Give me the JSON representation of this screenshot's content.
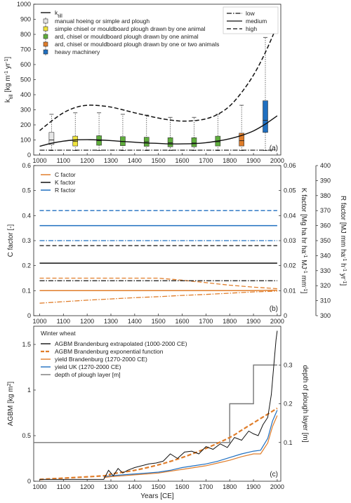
{
  "chart_data": [
    {
      "type": "line",
      "panel_label": "(a)",
      "ylabel": "k",
      "ylabel_sub": "till",
      "ylabel_unit_pre": " [kg m",
      "ylabel_unit_sup1": "-1",
      "ylabel_unit_mid": " yr",
      "ylabel_unit_sup2": "-1",
      "ylabel_unit_post": "]",
      "xlim": [
        975,
        2015
      ],
      "ylim": [
        0,
        1000
      ],
      "xticks": [
        1000,
        1100,
        1200,
        1300,
        1400,
        1500,
        1600,
        1700,
        1800,
        1900,
        2000
      ],
      "yticks": [
        0,
        100,
        200,
        300,
        400,
        500,
        600,
        700,
        800,
        900,
        1000
      ],
      "legend": {
        "ktill_main": "k",
        "ktill_sub": "till",
        "items": [
          {
            "label": "manual hoeing or simple ard plough",
            "color": "#e6e6e6"
          },
          {
            "label": "simple chisel or mouldboard plough drawn by one animal",
            "color": "#f0e43c"
          },
          {
            "label": "ard, chisel or mouldboard plough drawn by one animal",
            "color": "#5fae3c"
          },
          {
            "label": "ard, chisel or mouldboard plough drawn by one or two animals",
            "color": "#e07d2a"
          },
          {
            "label": "heavy machinery",
            "color": "#1f6fc0"
          }
        ],
        "styles": [
          {
            "label": "low",
            "dash": "dashdot"
          },
          {
            "label": "medium",
            "dash": "solid"
          },
          {
            "label": "high",
            "dash": "dash"
          }
        ]
      },
      "series": [
        {
          "role": "medium",
          "x": [
            1000,
            1050,
            1100,
            1150,
            1200,
            1250,
            1300,
            1350,
            1400,
            1450,
            1500,
            1550,
            1600,
            1650,
            1700,
            1750,
            1800,
            1850,
            1900,
            1950,
            2000
          ],
          "y": [
            58,
            78,
            92,
            100,
            102,
            100,
            96,
            90,
            85,
            80,
            77,
            74,
            74,
            76,
            82,
            93,
            108,
            130,
            160,
            205,
            260
          ]
        },
        {
          "role": "high",
          "x": [
            1000,
            1050,
            1100,
            1150,
            1200,
            1250,
            1300,
            1350,
            1400,
            1450,
            1500,
            1550,
            1600,
            1650,
            1700,
            1750,
            1800,
            1850,
            1900,
            1950,
            2000
          ],
          "y": [
            162,
            225,
            280,
            315,
            330,
            328,
            318,
            300,
            280,
            262,
            245,
            232,
            225,
            228,
            240,
            270,
            325,
            415,
            530,
            680,
            860
          ]
        },
        {
          "role": "low",
          "x": [
            1000,
            1100,
            1200,
            1300,
            1400,
            1500,
            1600,
            1700,
            1800,
            1900,
            2000
          ],
          "y": [
            32,
            32,
            32,
            32,
            32,
            32,
            32,
            32,
            32,
            32,
            32
          ]
        }
      ],
      "boxes": [
        {
          "x": 1050,
          "color": "#e6e6e6",
          "whisker_low": 30,
          "q1": 70,
          "median": 100,
          "q3": 150,
          "whisker_high": 270
        },
        {
          "x": 1150,
          "color": "#f0e43c",
          "whisker_low": 30,
          "q1": 60,
          "median": 90,
          "q3": 125,
          "whisker_high": 280
        },
        {
          "x": 1250,
          "color": "#5fae3c",
          "whisker_low": 30,
          "q1": 65,
          "median": 95,
          "q3": 128,
          "whisker_high": 280
        },
        {
          "x": 1350,
          "color": "#5fae3c",
          "whisker_low": 30,
          "q1": 62,
          "median": 90,
          "q3": 122,
          "whisker_high": 270
        },
        {
          "x": 1450,
          "color": "#5fae3c",
          "whisker_low": 30,
          "q1": 58,
          "median": 88,
          "q3": 118,
          "whisker_high": 265
        },
        {
          "x": 1550,
          "color": "#5fae3c",
          "whisker_low": 30,
          "q1": 55,
          "median": 82,
          "q3": 115,
          "whisker_high": 250
        },
        {
          "x": 1650,
          "color": "#5fae3c",
          "whisker_low": 30,
          "q1": 55,
          "median": 80,
          "q3": 115,
          "whisker_high": 250
        },
        {
          "x": 1750,
          "color": "#5fae3c",
          "whisker_low": 30,
          "q1": 60,
          "median": 88,
          "q3": 125,
          "whisker_high": 270
        },
        {
          "x": 1850,
          "color": "#e07d2a",
          "whisker_low": 30,
          "q1": 60,
          "median": 95,
          "q3": 145,
          "whisker_high": 330
        },
        {
          "x": 1950,
          "color": "#1f6fc0",
          "whisker_low": 30,
          "q1": 150,
          "median": 230,
          "q3": 360,
          "whisker_high": 780
        }
      ]
    },
    {
      "type": "line",
      "panel_label": "(b)",
      "ylabel": "C factor [-]",
      "ylabel2_parts": [
        "K factor [Mg ha hr ha",
        "-1",
        " MJ",
        "-1",
        " mm",
        "-1",
        "]"
      ],
      "ylabel3_parts": [
        "R factor [MJ mm ha",
        "-1",
        " h",
        "-1",
        " yr",
        "-1",
        "]"
      ],
      "xlim": [
        975,
        2015
      ],
      "ylim": [
        0,
        0.6
      ],
      "ylim2": [
        0,
        0.06
      ],
      "ylim3": [
        300,
        400
      ],
      "xticks": [
        1000,
        1100,
        1200,
        1300,
        1400,
        1500,
        1600,
        1700,
        1800,
        1900,
        2000
      ],
      "yticks": [
        "0",
        "0.1",
        "0.2",
        "0.3",
        "0.4",
        "0.5",
        "0.6"
      ],
      "yticks2": [
        "0",
        "0.01",
        "0.02",
        "0.03",
        "0.04",
        "0.05",
        "0.06"
      ],
      "yticks3": [
        "300",
        "310",
        "320",
        "330",
        "340",
        "350",
        "360",
        "370",
        "380",
        "390",
        "400"
      ],
      "legend": [
        {
          "label": "C factor",
          "color": "#e07d2a"
        },
        {
          "label": "K factor",
          "color": "#111111"
        },
        {
          "label": "R factor",
          "color": "#1f6fc0"
        }
      ],
      "series": [
        {
          "name": "C factor",
          "style": "high",
          "x": [
            1000,
            1500,
            1600,
            1700,
            1800,
            1900,
            2000
          ],
          "y": [
            0.15,
            0.15,
            0.142,
            0.132,
            0.122,
            0.114,
            0.108
          ]
        },
        {
          "name": "C factor",
          "style": "medium",
          "x": [
            1000,
            1500,
            1600,
            1700,
            1800,
            1900,
            2000
          ],
          "y": [
            0.1,
            0.1,
            0.1,
            0.1,
            0.1,
            0.1,
            0.102
          ]
        },
        {
          "name": "C factor",
          "style": "low",
          "x": [
            1000,
            1100,
            1200,
            1300,
            1400,
            1500,
            1600,
            1700,
            1800,
            1900,
            2000
          ],
          "y": [
            0.05,
            0.056,
            0.062,
            0.067,
            0.072,
            0.076,
            0.081,
            0.085,
            0.09,
            0.095,
            0.098
          ]
        },
        {
          "name": "K factor",
          "style": "high",
          "x": [
            1000,
            2000
          ],
          "y": [
            0.28,
            0.28
          ]
        },
        {
          "name": "K factor",
          "style": "medium",
          "x": [
            1000,
            2000
          ],
          "y": [
            0.21,
            0.21
          ]
        },
        {
          "name": "K factor",
          "style": "low",
          "x": [
            1000,
            2000
          ],
          "y": [
            0.14,
            0.14
          ]
        },
        {
          "name": "R factor",
          "style": "high",
          "x": [
            1000,
            2000
          ],
          "y": [
            0.42,
            0.42
          ]
        },
        {
          "name": "R factor",
          "style": "medium",
          "x": [
            1000,
            2000
          ],
          "y": [
            0.36,
            0.36
          ]
        },
        {
          "name": "R factor",
          "style": "low",
          "x": [
            1000,
            2000
          ],
          "y": [
            0.3,
            0.3
          ]
        }
      ]
    },
    {
      "type": "line",
      "panel_label": "(c)",
      "ylabel_pre": "AGBM [kg m",
      "ylabel_sup": "2",
      "ylabel_post": "]",
      "ylabel2": "depth of plough layer [m]",
      "xlabel": "Years [CE]",
      "xlim": [
        975,
        2015
      ],
      "ylim": [
        0,
        1.7
      ],
      "ylim2": [
        0,
        0.4
      ],
      "xticks": [
        1000,
        1100,
        1200,
        1300,
        1400,
        1500,
        1600,
        1700,
        1800,
        1900,
        2000
      ],
      "yticks": [
        "0",
        "0.5",
        "1",
        "1.5"
      ],
      "yticks2": [
        "0.1",
        "0.2",
        "0.3"
      ],
      "legend_title": "Winter wheat",
      "legend": [
        {
          "label": "AGBM Brandenburg extrapolated (1000-2000 CE)",
          "color": "#111111"
        },
        {
          "label": "AGBM Brandenburg exponential function",
          "color": "#e07d2a"
        },
        {
          "label": "yield Brandenburg (1270-2000 CE)",
          "color": "#e07d2a"
        },
        {
          "label": "yield UK (1270-2000 CE)",
          "color": "#1f6fc0"
        },
        {
          "label": "depth of plough layer [m]",
          "color": "#777777"
        }
      ],
      "series": [
        {
          "name": "AGBM Brandenburg extrapolated (1000-2000 CE)",
          "x": [
            1000,
            1270,
            1290,
            1310,
            1330,
            1350,
            1370,
            1400,
            1430,
            1460,
            1490,
            1520,
            1550,
            1580,
            1610,
            1640,
            1670,
            1700,
            1730,
            1760,
            1790,
            1820,
            1850,
            1880,
            1900,
            1920,
            1940,
            1960,
            1975,
            1985,
            1995,
            2000
          ],
          "y": [
            0.02,
            0.02,
            0.12,
            0.06,
            0.14,
            0.09,
            0.12,
            0.15,
            0.17,
            0.19,
            0.2,
            0.22,
            0.3,
            0.25,
            0.32,
            0.33,
            0.3,
            0.38,
            0.35,
            0.41,
            0.37,
            0.48,
            0.45,
            0.55,
            0.52,
            0.5,
            0.62,
            0.7,
            0.95,
            1.25,
            1.55,
            1.65
          ]
        },
        {
          "name": "AGBM Brandenburg exponential function",
          "x": [
            1000,
            1270,
            1300,
            1400,
            1500,
            1600,
            1700,
            1800,
            1850,
            1900,
            1950,
            2000
          ],
          "y": [
            0.02,
            0.06,
            0.08,
            0.12,
            0.18,
            0.26,
            0.36,
            0.48,
            0.56,
            0.64,
            0.72,
            0.8
          ]
        },
        {
          "name": "yield Brandenburg (1270-2000 CE)",
          "x": [
            1270,
            1300,
            1350,
            1400,
            1450,
            1500,
            1550,
            1600,
            1650,
            1700,
            1750,
            1800,
            1850,
            1900,
            1930,
            1960,
            1980,
            2000
          ],
          "y": [
            0.04,
            0.05,
            0.06,
            0.07,
            0.08,
            0.09,
            0.11,
            0.13,
            0.15,
            0.17,
            0.2,
            0.23,
            0.27,
            0.3,
            0.3,
            0.42,
            0.6,
            0.72
          ]
        },
        {
          "name": "yield UK (1270-2000 CE)",
          "x": [
            1270,
            1300,
            1350,
            1400,
            1450,
            1500,
            1550,
            1600,
            1650,
            1700,
            1750,
            1800,
            1850,
            1900,
            1930,
            1960,
            1980,
            2000
          ],
          "y": [
            0.05,
            0.06,
            0.07,
            0.08,
            0.09,
            0.1,
            0.12,
            0.15,
            0.17,
            0.19,
            0.22,
            0.26,
            0.3,
            0.33,
            0.34,
            0.47,
            0.66,
            0.78
          ]
        },
        {
          "name": "depth of plough layer [m]",
          "axis": "right",
          "x": [
            975,
            1800,
            1800,
            1900,
            1900,
            2000
          ],
          "y": [
            0.1,
            0.1,
            0.2,
            0.2,
            0.3,
            0.3
          ]
        }
      ]
    }
  ]
}
